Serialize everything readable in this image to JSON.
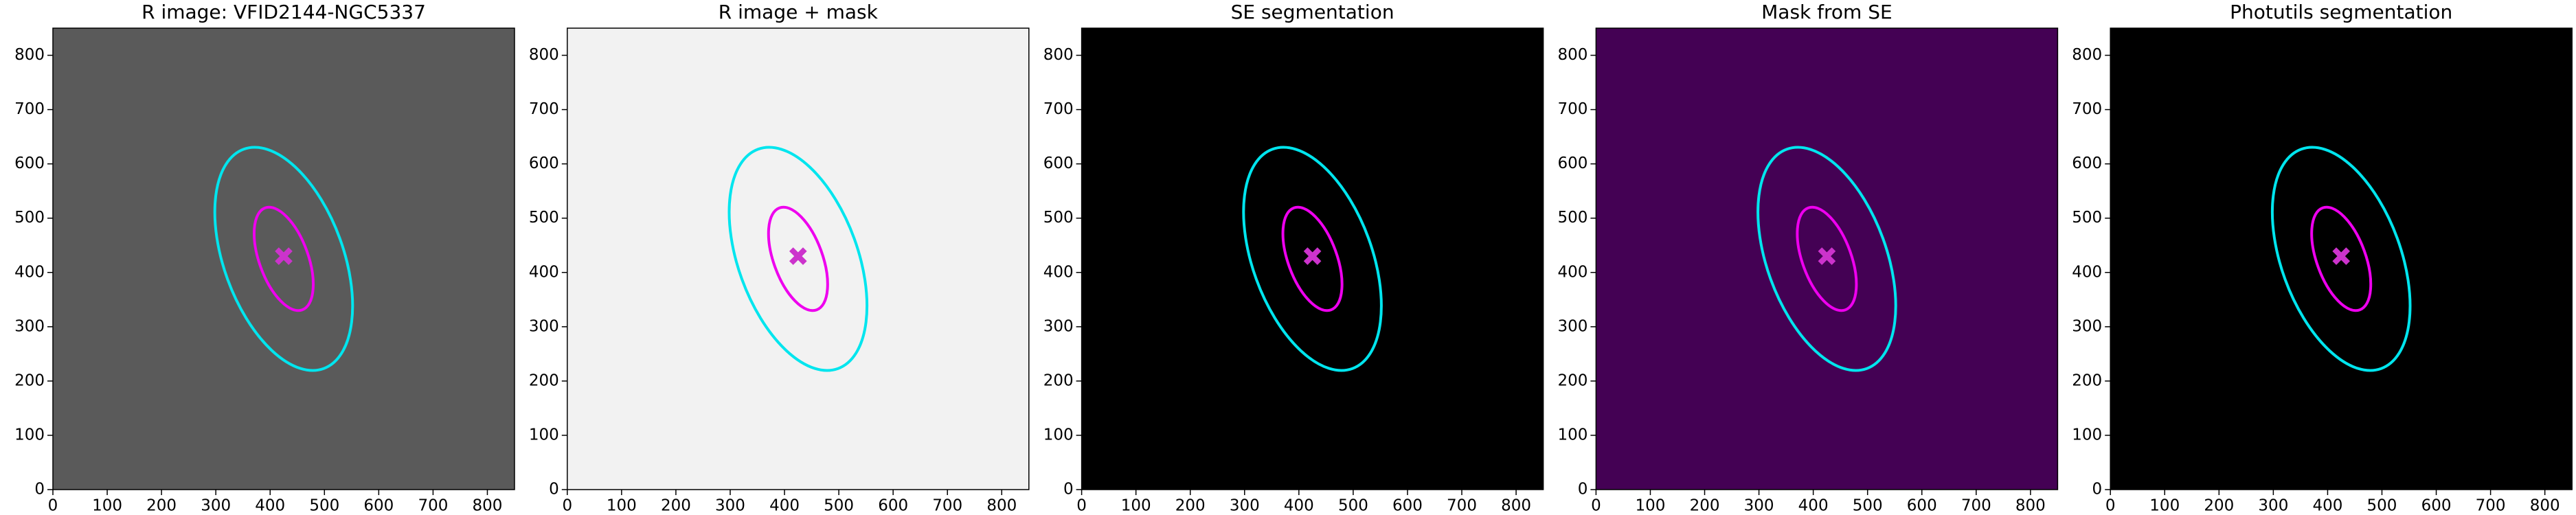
{
  "chart_data": [
    {
      "type": "image",
      "title": "R image: VFID2144-NGC5337",
      "background": "#5a5a5a",
      "xlim": [
        0,
        850
      ],
      "ylim": [
        0,
        850
      ],
      "xticks": [
        0,
        100,
        200,
        300,
        400,
        500,
        600,
        700,
        800
      ],
      "yticks": [
        0,
        100,
        200,
        300,
        400,
        500,
        600,
        700,
        800
      ],
      "ellipses": [
        {
          "color": "#00e5ee",
          "cx": 425,
          "cy": 425,
          "a": 215,
          "b": 110,
          "angle": 110
        },
        {
          "color": "#ee00ee",
          "cx": 425,
          "cy": 425,
          "a": 100,
          "b": 45,
          "angle": 110
        }
      ],
      "marker": {
        "color": "#cc33cc",
        "x": 425,
        "y": 430
      }
    },
    {
      "type": "image",
      "title": "R image + mask",
      "background": "#f2f2f2",
      "xlim": [
        0,
        850
      ],
      "ylim": [
        0,
        850
      ],
      "xticks": [
        0,
        100,
        200,
        300,
        400,
        500,
        600,
        700,
        800
      ],
      "yticks": [
        0,
        100,
        200,
        300,
        400,
        500,
        600,
        700,
        800
      ],
      "ellipses": [
        {
          "color": "#00e5ee",
          "cx": 425,
          "cy": 425,
          "a": 215,
          "b": 110,
          "angle": 110
        },
        {
          "color": "#ee00ee",
          "cx": 425,
          "cy": 425,
          "a": 100,
          "b": 45,
          "angle": 110
        }
      ],
      "marker": {
        "color": "#cc33cc",
        "x": 425,
        "y": 430
      }
    },
    {
      "type": "image",
      "title": "SE segmentation",
      "background": "#000000",
      "xlim": [
        0,
        850
      ],
      "ylim": [
        0,
        850
      ],
      "xticks": [
        0,
        100,
        200,
        300,
        400,
        500,
        600,
        700,
        800
      ],
      "yticks": [
        0,
        100,
        200,
        300,
        400,
        500,
        600,
        700,
        800
      ],
      "ellipses": [
        {
          "color": "#00e5ee",
          "cx": 425,
          "cy": 425,
          "a": 215,
          "b": 110,
          "angle": 110
        },
        {
          "color": "#ee00ee",
          "cx": 425,
          "cy": 425,
          "a": 100,
          "b": 45,
          "angle": 110
        }
      ],
      "marker": {
        "color": "#cc33cc",
        "x": 425,
        "y": 430
      }
    },
    {
      "type": "image",
      "title": "Mask from SE",
      "background": "#440154",
      "xlim": [
        0,
        850
      ],
      "ylim": [
        0,
        850
      ],
      "xticks": [
        0,
        100,
        200,
        300,
        400,
        500,
        600,
        700,
        800
      ],
      "yticks": [
        0,
        100,
        200,
        300,
        400,
        500,
        600,
        700,
        800
      ],
      "ellipses": [
        {
          "color": "#00e5ee",
          "cx": 425,
          "cy": 425,
          "a": 215,
          "b": 110,
          "angle": 110
        },
        {
          "color": "#ee00ee",
          "cx": 425,
          "cy": 425,
          "a": 100,
          "b": 45,
          "angle": 110
        }
      ],
      "marker": {
        "color": "#cc33cc",
        "x": 425,
        "y": 430
      }
    },
    {
      "type": "image",
      "title": "Photutils segmentation",
      "background": "#000000",
      "xlim": [
        0,
        850
      ],
      "ylim": [
        0,
        850
      ],
      "xticks": [
        0,
        100,
        200,
        300,
        400,
        500,
        600,
        700,
        800
      ],
      "yticks": [
        0,
        100,
        200,
        300,
        400,
        500,
        600,
        700,
        800
      ],
      "ellipses": [
        {
          "color": "#00e5ee",
          "cx": 425,
          "cy": 425,
          "a": 215,
          "b": 110,
          "angle": 110
        },
        {
          "color": "#ee00ee",
          "cx": 425,
          "cy": 425,
          "a": 100,
          "b": 45,
          "angle": 110
        }
      ],
      "marker": {
        "color": "#cc33cc",
        "x": 425,
        "y": 430
      }
    }
  ]
}
